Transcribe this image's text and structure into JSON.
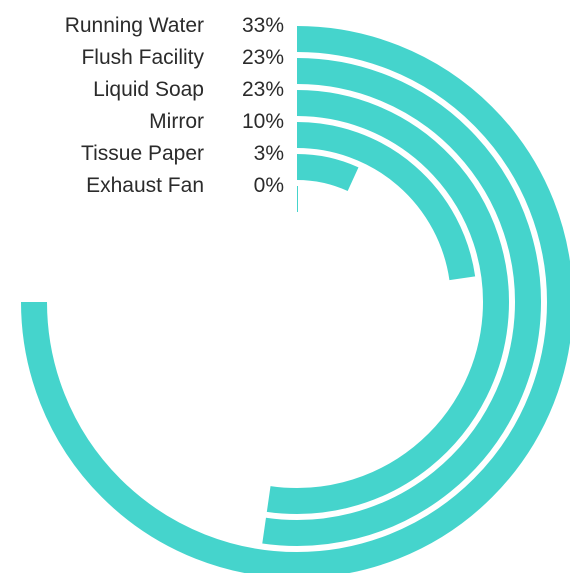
{
  "chart_data": {
    "type": "radial_bar",
    "title": "",
    "categories": [
      "Running Water",
      "Flush Facility",
      "Liquid Soap",
      "Mirror",
      "Tissue Paper",
      "Exhaust Fan"
    ],
    "values": [
      33,
      23,
      23,
      10,
      3,
      0
    ],
    "value_labels": [
      "33%",
      "23%",
      "23%",
      "10%",
      "3%",
      "0%"
    ],
    "bar_color": "#45d4cc",
    "legend": "none",
    "grid": false,
    "start_angle_deg": 0,
    "direction": "clockwise"
  }
}
